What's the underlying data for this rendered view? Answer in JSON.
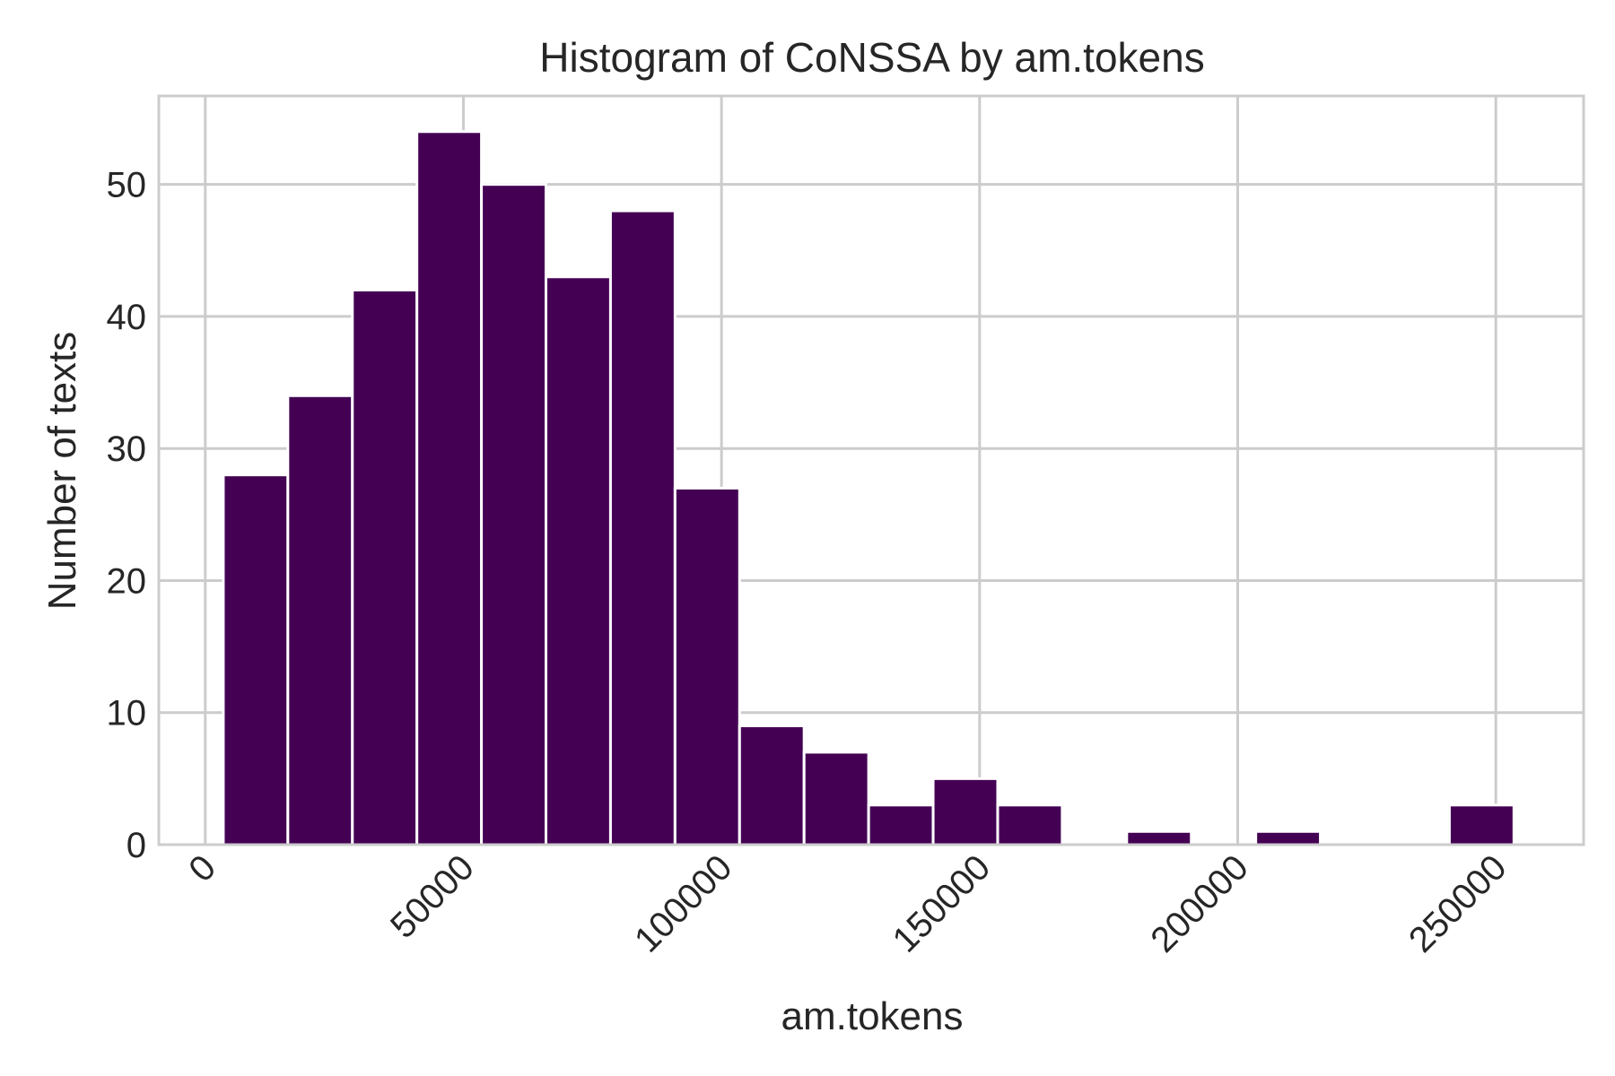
{
  "chart_data": {
    "type": "bar",
    "title": "Histogram of CoNSSA by am.tokens",
    "xlabel": "am.tokens",
    "ylabel": "Number of texts",
    "bins": [
      {
        "start": 3500,
        "end": 16000,
        "count": 28
      },
      {
        "start": 16000,
        "end": 28500,
        "count": 34
      },
      {
        "start": 28500,
        "end": 41000,
        "count": 42
      },
      {
        "start": 41000,
        "end": 53500,
        "count": 54
      },
      {
        "start": 53500,
        "end": 66000,
        "count": 50
      },
      {
        "start": 66000,
        "end": 78500,
        "count": 43
      },
      {
        "start": 78500,
        "end": 91000,
        "count": 48
      },
      {
        "start": 91000,
        "end": 103500,
        "count": 27
      },
      {
        "start": 103500,
        "end": 116000,
        "count": 9
      },
      {
        "start": 116000,
        "end": 128500,
        "count": 7
      },
      {
        "start": 128500,
        "end": 141000,
        "count": 3
      },
      {
        "start": 141000,
        "end": 153500,
        "count": 5
      },
      {
        "start": 153500,
        "end": 166000,
        "count": 3
      },
      {
        "start": 166000,
        "end": 178500,
        "count": 0
      },
      {
        "start": 178500,
        "end": 191000,
        "count": 1
      },
      {
        "start": 191000,
        "end": 203500,
        "count": 0
      },
      {
        "start": 203500,
        "end": 216000,
        "count": 1
      },
      {
        "start": 216000,
        "end": 228500,
        "count": 0
      },
      {
        "start": 228500,
        "end": 241000,
        "count": 0
      },
      {
        "start": 241000,
        "end": 253500,
        "count": 3
      }
    ],
    "xlim": [
      -9000,
      267000
    ],
    "ylim": [
      0,
      56.7
    ],
    "xticks": [
      0,
      50000,
      100000,
      150000,
      200000,
      250000
    ],
    "xtick_labels": [
      "0",
      "50000",
      "100000",
      "150000",
      "200000",
      "250000"
    ],
    "yticks": [
      0,
      10,
      20,
      30,
      40,
      50
    ],
    "ytick_labels": [
      "0",
      "10",
      "20",
      "30",
      "40",
      "50"
    ],
    "grid": true,
    "bar_color": "#440154",
    "grid_color": "#cccccc",
    "text_color": "#262626"
  }
}
